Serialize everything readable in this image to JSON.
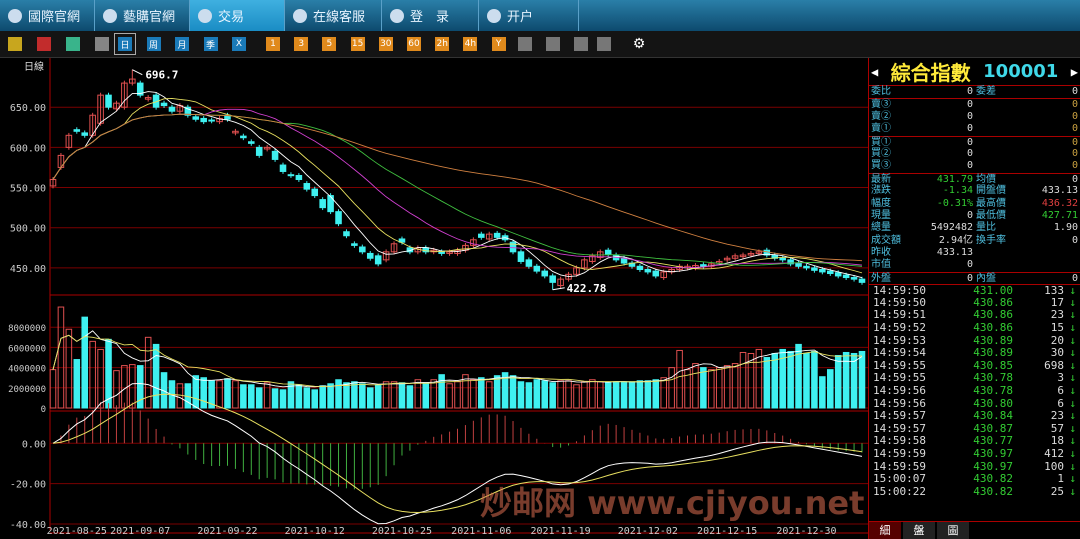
{
  "nav": {
    "items": [
      {
        "label": "國際官網",
        "icon": "globe-icon"
      },
      {
        "label": "藝購官網",
        "icon": "link-icon"
      },
      {
        "label": "交易",
        "icon": "star-icon",
        "active": true
      },
      {
        "label": "在線客服",
        "icon": "chat-icon"
      },
      {
        "label": "登　录",
        "icon": "user-icon"
      },
      {
        "label": "开户",
        "icon": "monitor-icon"
      }
    ]
  },
  "toolbar": {
    "icons": [
      "bar-chart-icon",
      "line-chart-icon",
      "candlestick-icon",
      "calendar-icon"
    ],
    "periods": [
      "日",
      "周",
      "月",
      "季",
      "X"
    ],
    "selected_period": "日",
    "minutes": [
      "1",
      "3",
      "5",
      "15",
      "30",
      "60",
      "2h",
      "4h",
      "Y"
    ],
    "tools": [
      "ruler-icon",
      "zoom-in-icon",
      "zoom-out-icon",
      "draw-icon",
      "gear-icon"
    ]
  },
  "colors": {
    "up": "#e05050",
    "down": "#3ff0f0",
    "grid": "#7a0000",
    "ma5": "#ffffff",
    "ma10": "#e8e060",
    "ma20": "#d040d0",
    "ma30": "#40c040",
    "ma60": "#d08040"
  },
  "chart_data": {
    "type": "candlestick",
    "period_label": "日線",
    "price_axis": {
      "ticks": [
        "650.00",
        "600.00",
        "550.00",
        "500.00",
        "450.00"
      ],
      "values": [
        650,
        600,
        550,
        500,
        450
      ]
    },
    "volume_axis": {
      "ticks": [
        "8000000",
        "6000000",
        "4000000",
        "2000000",
        "0"
      ],
      "values": [
        8000000,
        6000000,
        4000000,
        2000000,
        0
      ]
    },
    "macd_axis": {
      "ticks": [
        "0.00",
        "-20.00",
        "-40.00"
      ],
      "values": [
        0,
        -20,
        -40
      ]
    },
    "high_label": "696.7",
    "high_value": 696.7,
    "high_index": 10,
    "low_label": "422.78",
    "low_value": 422.78,
    "low_index": 63,
    "date_labels": [
      {
        "label": "2021-08-25",
        "index": 3
      },
      {
        "label": "2021-09-07",
        "index": 11
      },
      {
        "label": "2021-09-22",
        "index": 22
      },
      {
        "label": "2021-10-12",
        "index": 33
      },
      {
        "label": "2021-10-25",
        "index": 44
      },
      {
        "label": "2021-11-06",
        "index": 54
      },
      {
        "label": "2021-11-19",
        "index": 64
      },
      {
        "label": "2021-12-02",
        "index": 75
      },
      {
        "label": "2021-12-15",
        "index": 85
      },
      {
        "label": "2021-12-30",
        "index": 95
      }
    ],
    "close": [
      560,
      590,
      615,
      620,
      615,
      640,
      665,
      650,
      655,
      680,
      685,
      665,
      662,
      650,
      652,
      645,
      652,
      640,
      635,
      632,
      633,
      636,
      635,
      620,
      612,
      605,
      590,
      600,
      585,
      570,
      565,
      560,
      548,
      540,
      525,
      520,
      505,
      490,
      478,
      470,
      462,
      455,
      470,
      480,
      482,
      470,
      475,
      470,
      472,
      468,
      470,
      472,
      478,
      485,
      488,
      492,
      488,
      485,
      470,
      458,
      452,
      446,
      440,
      432,
      436,
      442,
      450,
      460,
      465,
      470,
      467,
      460,
      456,
      452,
      448,
      445,
      440,
      445,
      448,
      452,
      452,
      453,
      452,
      455,
      458,
      462,
      465,
      466,
      468,
      470,
      466,
      462,
      460,
      455,
      452,
      450,
      447,
      445,
      443,
      440,
      438,
      436,
      432
    ],
    "open": [
      552,
      575,
      600,
      622,
      618,
      615,
      630,
      665,
      648,
      650,
      680,
      680,
      660,
      665,
      655,
      650,
      645,
      650,
      638,
      636,
      634,
      632,
      640,
      618,
      614,
      607,
      600,
      598,
      595,
      578,
      566,
      565,
      555,
      548,
      535,
      540,
      520,
      495,
      480,
      476,
      468,
      465,
      460,
      470,
      486,
      475,
      470,
      475,
      470,
      470,
      468,
      468,
      472,
      478,
      492,
      486,
      493,
      490,
      482,
      470,
      460,
      452,
      446,
      440,
      428,
      436,
      442,
      450,
      458,
      463,
      472,
      466,
      462,
      456,
      452,
      448,
      446,
      438,
      445,
      448,
      450,
      450,
      454,
      452,
      456,
      460,
      462,
      464,
      466,
      468,
      472,
      466,
      462,
      460,
      456,
      452,
      450,
      448,
      446,
      444,
      441,
      438,
      436
    ],
    "volume": [
      3800000,
      10000000,
      7800000,
      4800000,
      9000000,
      6600000,
      5800000,
      6800000,
      3700000,
      4200000,
      4300000,
      4200000,
      7000000,
      6300000,
      3500000,
      2700000,
      2400000,
      2400000,
      3200000,
      3000000,
      2700000,
      2700000,
      2900000,
      2700000,
      2300000,
      2300000,
      2000000,
      2500000,
      1900000,
      1800000,
      2600000,
      2300000,
      2000000,
      1800000,
      2200000,
      2400000,
      2800000,
      2500000,
      2600000,
      2400000,
      2000000,
      2300000,
      2600000,
      2600000,
      2500000,
      2200000,
      2800000,
      2500000,
      2800000,
      3300000,
      2400000,
      2600000,
      3300000,
      2800000,
      3000000,
      2600000,
      3200000,
      3500000,
      3200000,
      2600000,
      2500000,
      2800000,
      2700000,
      2500000,
      2700000,
      2700000,
      2300000,
      2600000,
      2800000,
      2600000,
      2500000,
      2600000,
      2600000,
      2600000,
      2700000,
      2700000,
      2800000,
      3000000,
      4000000,
      5700000,
      3800000,
      4400000,
      4000000,
      3800000,
      4000000,
      4200000,
      4400000,
      5500000,
      5400000,
      5800000,
      5000000,
      5400000,
      5800000,
      5600000,
      6300000,
      5400000,
      5600000,
      3100000,
      3800000,
      5200000,
      5500000,
      5400000,
      5600000
    ],
    "price_range": [
      420,
      705
    ],
    "volume_range": [
      0,
      10500000
    ],
    "macd_range": [
      -42,
      14
    ],
    "moving_averages": [
      5,
      10,
      20,
      30,
      60
    ]
  },
  "quote": {
    "name": "綜合指數",
    "code": "100001",
    "wb": {
      "l": "委比",
      "v": "0",
      "l2": "委差",
      "v2": "0"
    },
    "sell": [
      {
        "l": "賣③",
        "v": "0",
        "v2": "0"
      },
      {
        "l": "賣②",
        "v": "0",
        "v2": "0"
      },
      {
        "l": "賣①",
        "v": "0",
        "v2": "0"
      }
    ],
    "buy": [
      {
        "l": "買①",
        "v": "0",
        "v2": "0"
      },
      {
        "l": "買②",
        "v": "0",
        "v2": "0"
      },
      {
        "l": "買③",
        "v": "0",
        "v2": "0"
      }
    ],
    "stats": [
      {
        "l": "最新",
        "v": "431.79",
        "vc": "#3c3",
        "l2": "均價",
        "v2": "0",
        "v2c": "#ddd"
      },
      {
        "l": "漲跌",
        "v": "-1.34",
        "vc": "#3c3",
        "l2": "開盤價",
        "v2": "433.13",
        "v2c": "#ddd"
      },
      {
        "l": "幅度",
        "v": "-0.31%",
        "vc": "#3c3",
        "l2": "最高價",
        "v2": "436.32",
        "v2c": "#e04040"
      },
      {
        "l": "現量",
        "v": "0",
        "vc": "#ddd",
        "l2": "最低價",
        "v2": "427.71",
        "v2c": "#3c3"
      },
      {
        "l": "總量",
        "v": "5492482",
        "vc": "#ddd",
        "l2": "量比",
        "v2": "1.90",
        "v2c": "#ddd"
      },
      {
        "l": "成交額",
        "v": "2.94亿",
        "vc": "#ddd",
        "l2": "換手率",
        "v2": "0",
        "v2c": "#ddd"
      },
      {
        "l": "昨收",
        "v": "433.13",
        "vc": "#ddd",
        "l2": "",
        "v2": "",
        "v2c": "#ddd"
      },
      {
        "l": "市值",
        "v": "0",
        "vc": "#ddd",
        "l2": "",
        "v2": "",
        "v2c": "#ddd"
      },
      {
        "l": "外盤",
        "v": "0",
        "vc": "#ddd",
        "l2": "內盤",
        "v2": "0",
        "v2c": "#ddd"
      }
    ],
    "ticks": [
      [
        "14:59:50",
        "431.00",
        "133"
      ],
      [
        "14:59:50",
        "430.86",
        "17"
      ],
      [
        "14:59:51",
        "430.86",
        "23"
      ],
      [
        "14:59:52",
        "430.86",
        "15"
      ],
      [
        "14:59:53",
        "430.89",
        "20"
      ],
      [
        "14:59:54",
        "430.89",
        "30"
      ],
      [
        "14:59:55",
        "430.85",
        "698"
      ],
      [
        "14:59:55",
        "430.78",
        "3"
      ],
      [
        "14:59:56",
        "430.78",
        "6"
      ],
      [
        "14:59:56",
        "430.80",
        "6"
      ],
      [
        "14:59:57",
        "430.84",
        "23"
      ],
      [
        "14:59:57",
        "430.87",
        "57"
      ],
      [
        "14:59:58",
        "430.77",
        "18"
      ],
      [
        "14:59:59",
        "430.97",
        "412"
      ],
      [
        "14:59:59",
        "430.97",
        "100"
      ],
      [
        "15:00:07",
        "430.82",
        "1"
      ],
      [
        "15:00:22",
        "430.82",
        "25"
      ]
    ],
    "tabs": [
      "細",
      "盤",
      "圖"
    ]
  },
  "watermark": "炒邮网 www.cjiyou.net"
}
